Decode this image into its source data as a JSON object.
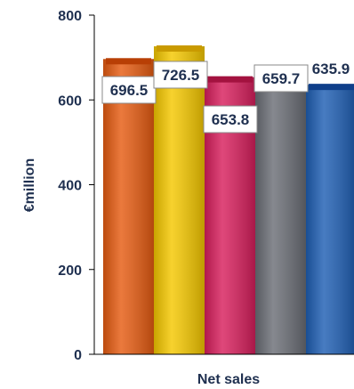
{
  "chart_data": {
    "type": "bar",
    "title": "",
    "xlabel": "Net sales",
    "ylabel": "€million",
    "ylim": [
      0,
      800
    ],
    "yticks": [
      "0",
      "200",
      "400",
      "600",
      "800"
    ],
    "grid": false,
    "categories": [
      "",
      "",
      "",
      "",
      ""
    ],
    "series": [
      {
        "values": [
          696.5,
          726.5,
          653.8,
          659.7,
          635.9
        ]
      }
    ],
    "data_labels": [
      "696.5",
      "726.5",
      "653.8",
      "659.7",
      "635.9"
    ],
    "colors": [
      "#e65c12",
      "#f5c800",
      "#d81f5d",
      "#6b6e76",
      "#1f5fb4"
    ],
    "top_colors": [
      "#b83f05",
      "#c99a00",
      "#a3123f",
      "#4a4c52",
      "#0f3f8a"
    ]
  }
}
